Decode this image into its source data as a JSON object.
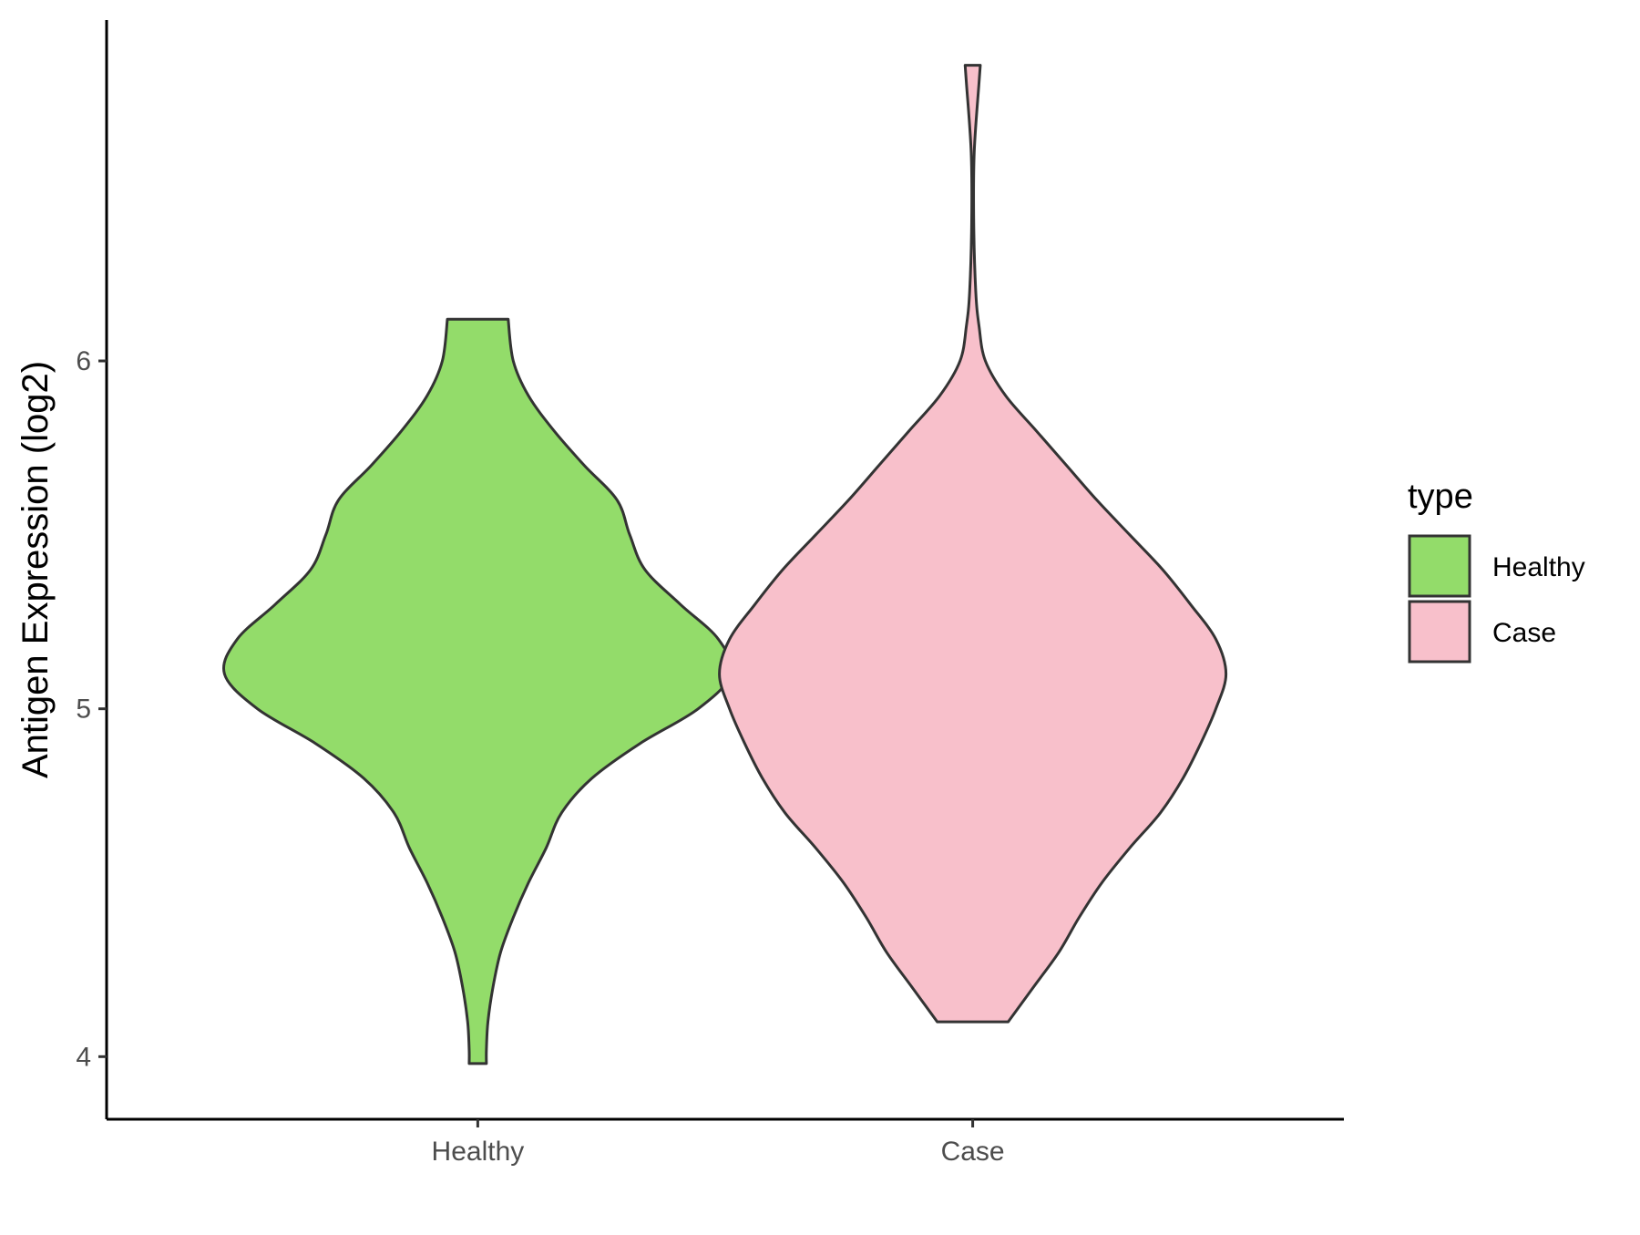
{
  "chart_data": {
    "type": "violin",
    "title": "",
    "xlabel": "",
    "ylabel": "Antigen Expression (log2)",
    "ylim": [
      3.82,
      6.98
    ],
    "yticks": [
      4,
      5,
      6
    ],
    "categories": [
      "Healthy",
      "Case"
    ],
    "legend": {
      "title": "type",
      "position": "right",
      "entries": [
        "Healthy",
        "Case"
      ]
    },
    "series": [
      {
        "category": "Healthy",
        "color": "#93dc6a",
        "min": 3.98,
        "max": 6.12,
        "density_profile": [
          [
            3.98,
            0.034
          ],
          [
            4.02,
            0.034
          ],
          [
            4.1,
            0.04
          ],
          [
            4.2,
            0.06
          ],
          [
            4.3,
            0.09
          ],
          [
            4.4,
            0.14
          ],
          [
            4.5,
            0.2
          ],
          [
            4.6,
            0.27
          ],
          [
            4.7,
            0.33
          ],
          [
            4.8,
            0.45
          ],
          [
            4.9,
            0.64
          ],
          [
            5.0,
            0.87
          ],
          [
            5.1,
            1.0
          ],
          [
            5.2,
            0.95
          ],
          [
            5.3,
            0.8
          ],
          [
            5.4,
            0.66
          ],
          [
            5.5,
            0.6
          ],
          [
            5.6,
            0.55
          ],
          [
            5.7,
            0.42
          ],
          [
            5.8,
            0.3
          ],
          [
            5.9,
            0.2
          ],
          [
            6.0,
            0.14
          ],
          [
            6.12,
            0.12
          ]
        ]
      },
      {
        "category": "Case",
        "color": "#f8c0cb",
        "min": 4.1,
        "max": 6.85,
        "density_profile": [
          [
            4.1,
            0.14
          ],
          [
            4.2,
            0.24
          ],
          [
            4.3,
            0.34
          ],
          [
            4.4,
            0.42
          ],
          [
            4.5,
            0.51
          ],
          [
            4.6,
            0.62
          ],
          [
            4.7,
            0.74
          ],
          [
            4.8,
            0.83
          ],
          [
            4.9,
            0.9
          ],
          [
            5.0,
            0.96
          ],
          [
            5.1,
            1.0
          ],
          [
            5.2,
            0.96
          ],
          [
            5.3,
            0.86
          ],
          [
            5.4,
            0.75
          ],
          [
            5.5,
            0.62
          ],
          [
            5.6,
            0.49
          ],
          [
            5.7,
            0.37
          ],
          [
            5.8,
            0.25
          ],
          [
            5.9,
            0.13
          ],
          [
            6.0,
            0.05
          ],
          [
            6.1,
            0.025
          ],
          [
            6.2,
            0.012
          ],
          [
            6.4,
            0.004
          ],
          [
            6.6,
            0.006
          ],
          [
            6.8,
            0.025
          ],
          [
            6.85,
            0.03
          ]
        ]
      }
    ]
  }
}
